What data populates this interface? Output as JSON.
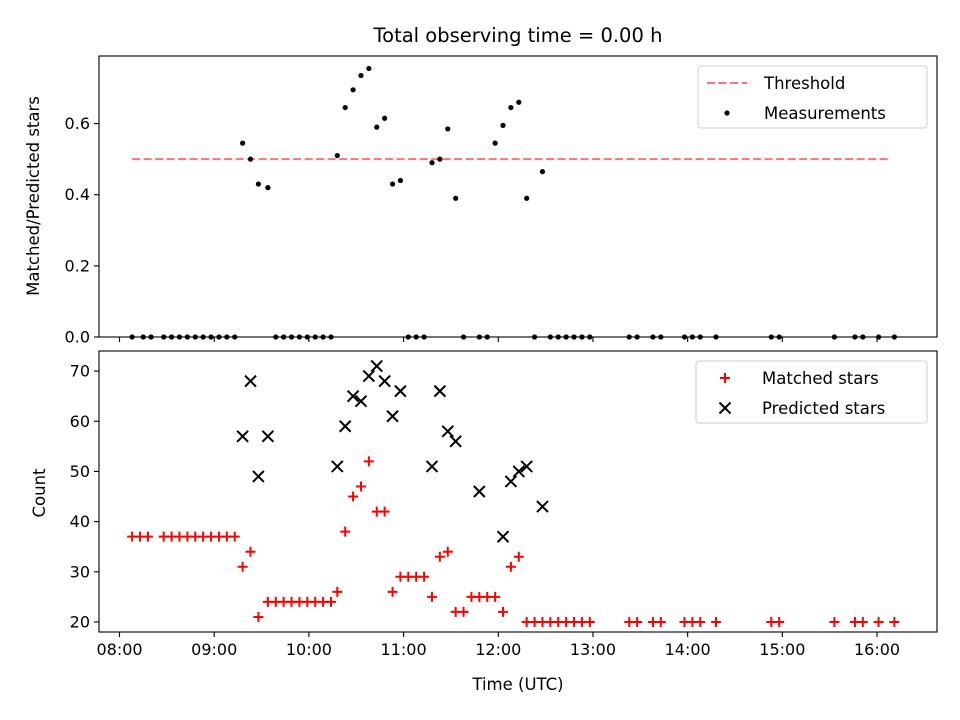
{
  "chart_data": [
    {
      "type": "scatter",
      "title": "Total observing time = 0.00 h",
      "xlabel": "",
      "ylabel": "Matched/Predicted stars",
      "xlim": [
        "07:47",
        "16:38"
      ],
      "ylim": [
        0,
        0.79
      ],
      "yticks": [
        "0.0",
        "0.2",
        "0.4",
        "0.6"
      ],
      "legend": "top-right",
      "grid": false,
      "threshold": {
        "name": "Threshold",
        "value": 0.5,
        "x_start": "08:08",
        "x_end": "16:07",
        "color": "#ff7373",
        "style": "dashed"
      },
      "series": [
        {
          "name": "Measurements",
          "color": "#000000",
          "marker": "dot",
          "points": [
            [
              "08:08",
              0
            ],
            [
              "08:15",
              0
            ],
            [
              "08:20",
              0
            ],
            [
              "08:28",
              0
            ],
            [
              "08:33",
              0
            ],
            [
              "08:38",
              0
            ],
            [
              "08:43",
              0
            ],
            [
              "08:48",
              0
            ],
            [
              "08:53",
              0
            ],
            [
              "08:58",
              0
            ],
            [
              "09:03",
              0
            ],
            [
              "09:08",
              0
            ],
            [
              "09:13",
              0
            ],
            [
              "09:18",
              0.545
            ],
            [
              "09:23",
              0.5
            ],
            [
              "09:28",
              0.43
            ],
            [
              "09:34",
              0.42
            ],
            [
              "09:39",
              0
            ],
            [
              "09:44",
              0
            ],
            [
              "09:49",
              0
            ],
            [
              "09:54",
              0
            ],
            [
              "09:59",
              0
            ],
            [
              "10:04",
              0
            ],
            [
              "10:09",
              0
            ],
            [
              "10:14",
              0
            ],
            [
              "10:18",
              0.51
            ],
            [
              "10:23",
              0.645
            ],
            [
              "10:28",
              0.695
            ],
            [
              "10:33",
              0.735
            ],
            [
              "10:38",
              0.755
            ],
            [
              "10:43",
              0.59
            ],
            [
              "10:48",
              0.615
            ],
            [
              "10:53",
              0.43
            ],
            [
              "10:58",
              0.44
            ],
            [
              "11:03",
              0
            ],
            [
              "11:08",
              0
            ],
            [
              "11:13",
              0
            ],
            [
              "11:18",
              0.49
            ],
            [
              "11:23",
              0.5
            ],
            [
              "11:28",
              0.585
            ],
            [
              "11:33",
              0.39
            ],
            [
              "11:38",
              0
            ],
            [
              "11:48",
              0
            ],
            [
              "11:53",
              0
            ],
            [
              "11:58",
              0.545
            ],
            [
              "12:03",
              0.595
            ],
            [
              "12:08",
              0.645
            ],
            [
              "12:13",
              0.66
            ],
            [
              "12:18",
              0.39
            ],
            [
              "12:28",
              0.465
            ],
            [
              "12:23",
              0
            ],
            [
              "12:33",
              0
            ],
            [
              "12:38",
              0
            ],
            [
              "12:43",
              0
            ],
            [
              "12:48",
              0
            ],
            [
              "12:53",
              0
            ],
            [
              "12:58",
              0
            ],
            [
              "13:23",
              0
            ],
            [
              "13:28",
              0
            ],
            [
              "13:38",
              0
            ],
            [
              "13:43",
              0
            ],
            [
              "13:58",
              0
            ],
            [
              "14:03",
              0
            ],
            [
              "14:08",
              0
            ],
            [
              "14:18",
              0
            ],
            [
              "14:53",
              0
            ],
            [
              "14:58",
              0
            ],
            [
              "15:33",
              0
            ],
            [
              "15:46",
              0
            ],
            [
              "15:51",
              0
            ],
            [
              "16:01",
              0
            ],
            [
              "16:11",
              0
            ]
          ]
        }
      ]
    },
    {
      "type": "scatter",
      "title": "",
      "xlabel": "Time (UTC)",
      "ylabel": "Count",
      "xlim": [
        "07:47",
        "16:38"
      ],
      "ylim": [
        18,
        74
      ],
      "yticks": [
        "20",
        "30",
        "40",
        "50",
        "60",
        "70"
      ],
      "xticks": [
        "08:00",
        "09:00",
        "10:00",
        "11:00",
        "12:00",
        "13:00",
        "14:00",
        "15:00",
        "16:00"
      ],
      "legend": "top-right",
      "grid": false,
      "series": [
        {
          "name": "Matched stars",
          "color": "#ff0000",
          "marker": "plus",
          "points": [
            [
              "08:08",
              37
            ],
            [
              "08:13",
              37
            ],
            [
              "08:18",
              37
            ],
            [
              "08:28",
              37
            ],
            [
              "08:33",
              37
            ],
            [
              "08:38",
              37
            ],
            [
              "08:43",
              37
            ],
            [
              "08:48",
              37
            ],
            [
              "08:53",
              37
            ],
            [
              "08:58",
              37
            ],
            [
              "09:03",
              37
            ],
            [
              "09:08",
              37
            ],
            [
              "09:13",
              37
            ],
            [
              "09:18",
              31
            ],
            [
              "09:23",
              34
            ],
            [
              "09:28",
              21
            ],
            [
              "09:34",
              24
            ],
            [
              "09:39",
              24
            ],
            [
              "09:44",
              24
            ],
            [
              "09:49",
              24
            ],
            [
              "09:54",
              24
            ],
            [
              "09:59",
              24
            ],
            [
              "10:04",
              24
            ],
            [
              "10:09",
              24
            ],
            [
              "10:14",
              24
            ],
            [
              "10:18",
              26
            ],
            [
              "10:23",
              38
            ],
            [
              "10:28",
              45
            ],
            [
              "10:33",
              47
            ],
            [
              "10:38",
              52
            ],
            [
              "10:43",
              42
            ],
            [
              "10:48",
              42
            ],
            [
              "10:53",
              26
            ],
            [
              "10:58",
              29
            ],
            [
              "11:03",
              29
            ],
            [
              "11:08",
              29
            ],
            [
              "11:13",
              29
            ],
            [
              "11:18",
              25
            ],
            [
              "11:23",
              33
            ],
            [
              "11:28",
              34
            ],
            [
              "11:33",
              22
            ],
            [
              "11:38",
              22
            ],
            [
              "11:43",
              25
            ],
            [
              "11:48",
              25
            ],
            [
              "11:53",
              25
            ],
            [
              "11:58",
              25
            ],
            [
              "12:03",
              22
            ],
            [
              "12:08",
              31
            ],
            [
              "12:13",
              33
            ],
            [
              "12:18",
              20
            ],
            [
              "12:23",
              20
            ],
            [
              "12:28",
              20
            ],
            [
              "12:33",
              20
            ],
            [
              "12:38",
              20
            ],
            [
              "12:43",
              20
            ],
            [
              "12:48",
              20
            ],
            [
              "12:53",
              20
            ],
            [
              "12:58",
              20
            ],
            [
              "13:23",
              20
            ],
            [
              "13:28",
              20
            ],
            [
              "13:38",
              20
            ],
            [
              "13:43",
              20
            ],
            [
              "13:58",
              20
            ],
            [
              "14:03",
              20
            ],
            [
              "14:08",
              20
            ],
            [
              "14:18",
              20
            ],
            [
              "14:53",
              20
            ],
            [
              "14:58",
              20
            ],
            [
              "15:33",
              20
            ],
            [
              "15:46",
              20
            ],
            [
              "15:51",
              20
            ],
            [
              "16:01",
              20
            ],
            [
              "16:11",
              20
            ]
          ]
        },
        {
          "name": "Predicted stars",
          "color": "#000000",
          "marker": "x",
          "points": [
            [
              "09:18",
              57
            ],
            [
              "09:23",
              68
            ],
            [
              "09:28",
              49
            ],
            [
              "09:34",
              57
            ],
            [
              "10:18",
              51
            ],
            [
              "10:23",
              59
            ],
            [
              "10:28",
              65
            ],
            [
              "10:33",
              64
            ],
            [
              "10:38",
              69
            ],
            [
              "10:43",
              71
            ],
            [
              "10:48",
              68
            ],
            [
              "10:53",
              61
            ],
            [
              "10:58",
              66
            ],
            [
              "11:18",
              51
            ],
            [
              "11:23",
              66
            ],
            [
              "11:28",
              58
            ],
            [
              "11:33",
              56
            ],
            [
              "11:48",
              46
            ],
            [
              "12:03",
              37
            ],
            [
              "12:08",
              48
            ],
            [
              "12:13",
              50
            ],
            [
              "12:18",
              51
            ],
            [
              "12:28",
              43
            ]
          ]
        }
      ]
    }
  ]
}
